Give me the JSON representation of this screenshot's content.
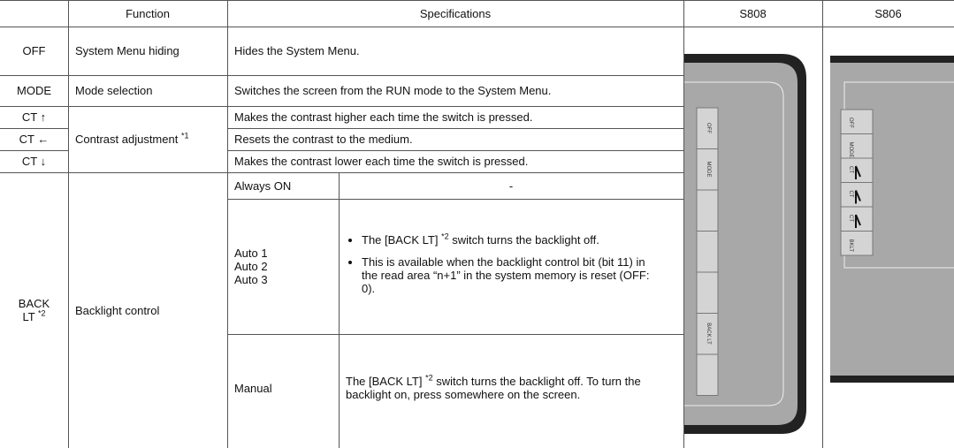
{
  "table": {
    "header": [
      "",
      "Function",
      "Specifications",
      "S808",
      "S806"
    ],
    "rows": [
      {
        "key": "OFF",
        "function": "System Menu hiding",
        "spec": "Hides the System Menu."
      },
      {
        "key": "MODE",
        "function": "Mode selection",
        "spec": "Switches the screen from the RUN mode to the System Menu."
      },
      {
        "key": "CT ↑",
        "spec": "Makes the contrast higher each time the switch is pressed."
      },
      {
        "key": "CT ←",
        "spec": "Resets the contrast to the medium."
      },
      {
        "key": "CT ↓",
        "spec": "Makes the contrast lower each time the switch is pressed."
      }
    ],
    "contrast_function": "Contrast adjustment",
    "contrast_note": "*1",
    "backlight": {
      "key": "BACK LT",
      "key_note": "*2",
      "function": "Backlight control",
      "modes": [
        {
          "name": "Always ON",
          "desc": "-"
        },
        {
          "name": "Auto 1\nAuto 2\nAuto 3",
          "bullet1_before": "The [BACK LT] ",
          "bullet1_note": "*2",
          "bullet1_after": " switch turns the backlight off.",
          "bullet2": "This is available when the backlight control bit (bit 11) in the read area “n+1” in the system memory is reset (OFF: 0)."
        },
        {
          "name": "Manual",
          "desc_before": "The [BACK LT] ",
          "desc_note": "*2",
          "desc_after": " switch turns the backlight off.  To turn the backlight on, press somewhere on the screen."
        }
      ]
    },
    "s808_buttons": [
      "OFF",
      "MODE",
      "BACK LT"
    ],
    "s806_buttons": [
      "OFF",
      "MODE",
      "CT",
      "CT",
      "CT",
      "BKLT"
    ]
  }
}
